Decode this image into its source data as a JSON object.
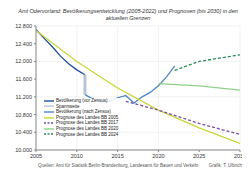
{
  "chart_data": {
    "type": "line",
    "title": "Amt Odervorland: Bevölkerungsentwicklung (2005-2022) und Prognosen (bis 2030) in den aktuellen Grenzen",
    "xlim": [
      2005,
      2030
    ],
    "xticks": [
      2005,
      2010,
      2015,
      2020,
      2025,
      2030
    ],
    "ylim": [
      10000,
      12800
    ],
    "yticks": [
      {
        "value": 10000,
        "label": "10.000"
      },
      {
        "value": 10400,
        "label": "10.400"
      },
      {
        "value": 10800,
        "label": "10.800"
      },
      {
        "value": 11200,
        "label": "11.200"
      },
      {
        "value": 11600,
        "label": "11.600"
      },
      {
        "value": 12000,
        "label": "12.000"
      },
      {
        "value": 12400,
        "label": "12.400"
      },
      {
        "value": 12800,
        "label": "12.800"
      }
    ],
    "grid": true,
    "legend": "lower left",
    "series": [
      {
        "name": "Bevölkerung (vor Zensus)",
        "color": "#1f4e9e",
        "line_style": "solid",
        "x": [
          2005,
          2006,
          2007,
          2008,
          2009,
          2010,
          2011
        ],
        "values": [
          12720,
          12520,
          12330,
          12120,
          11950,
          11810,
          11700
        ]
      },
      {
        "name": "Spannweite",
        "color": "#b8c4d6",
        "line_style": "solid",
        "x": [
          2011,
          2011
        ],
        "values": [
          11250,
          11700
        ]
      },
      {
        "name": "Bevölkerung (nach Zensus)",
        "color": "#4f87c7",
        "line_style": "solid",
        "x": [
          2011,
          2012,
          2013,
          2014,
          2015,
          2016,
          2017,
          2018,
          2019,
          2020,
          2021,
          2022
        ],
        "values": [
          11250,
          11150,
          11080,
          11100,
          11180,
          11230,
          11060,
          11200,
          11300,
          11450,
          11650,
          11900
        ]
      },
      {
        "name": "Prognose des Landes BB 2005",
        "color": "#c8d63a",
        "line_style": "solid",
        "x": [
          2005,
          2010,
          2015,
          2020,
          2025,
          2030
        ],
        "values": [
          12700,
          12000,
          11400,
          10900,
          10500,
          10150
        ]
      },
      {
        "name": "Prognose des Landes BB 2017",
        "color": "#7b4fa6",
        "line_style": "dashed",
        "x": [
          2016,
          2020,
          2025,
          2030
        ],
        "values": [
          11100,
          10900,
          10600,
          10350
        ]
      },
      {
        "name": "Prognose des Landes BB 2020",
        "color": "#8fd08a",
        "line_style": "solid",
        "x": [
          2020,
          2025,
          2030
        ],
        "values": [
          11500,
          11450,
          11350
        ]
      },
      {
        "name": "Prognose des Landes BB 2024",
        "color": "#2e8b57",
        "line_style": "dashed",
        "x": [
          2022,
          2025,
          2030
        ],
        "values": [
          11800,
          12000,
          12150
        ]
      }
    ],
    "footer": "Quellen: Amt für Statistik Berlin-Brandenburg, Landesamt für Bauen und Verkehr",
    "author": "Grafik: T. Ulbrich"
  }
}
